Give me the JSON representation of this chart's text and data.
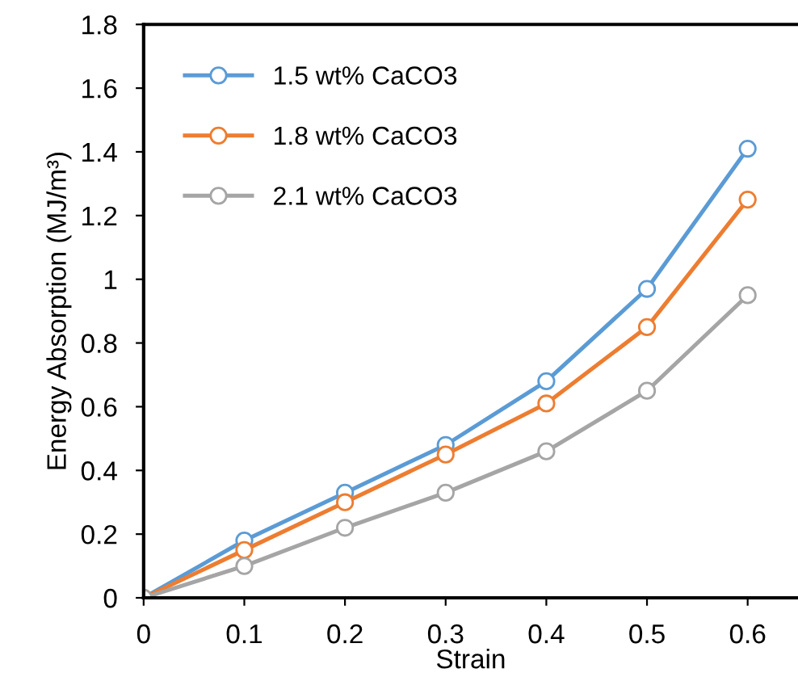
{
  "chart_data": {
    "type": "line",
    "xlabel": "Strain",
    "ylabel": "Energy Absorption (MJ/m³)",
    "x": [
      0,
      0.1,
      0.2,
      0.3,
      0.4,
      0.5,
      0.6
    ],
    "series": [
      {
        "name": "1.5 wt% CaCO3",
        "color": "#5b9bd5",
        "values": [
          0,
          0.18,
          0.33,
          0.48,
          0.68,
          0.97,
          1.41
        ]
      },
      {
        "name": "1.8 wt% CaCO3",
        "color": "#ed7d31",
        "values": [
          0,
          0.15,
          0.3,
          0.45,
          0.61,
          0.85,
          1.25
        ]
      },
      {
        "name": "2.1 wt% CaCO3",
        "color": "#a5a5a5",
        "values": [
          0,
          0.1,
          0.22,
          0.33,
          0.46,
          0.65,
          0.95
        ]
      }
    ],
    "xlim": [
      0,
      0.65
    ],
    "xticks": [
      0,
      0.1,
      0.2,
      0.3,
      0.4,
      0.5,
      0.6
    ],
    "ylim": [
      0,
      1.8
    ],
    "yticks": [
      0,
      0.2,
      0.4,
      0.6,
      0.8,
      1,
      1.2,
      1.4,
      1.6,
      1.8
    ],
    "marker": "circle",
    "line_style": "solid",
    "legend": "top left",
    "grid": false
  }
}
